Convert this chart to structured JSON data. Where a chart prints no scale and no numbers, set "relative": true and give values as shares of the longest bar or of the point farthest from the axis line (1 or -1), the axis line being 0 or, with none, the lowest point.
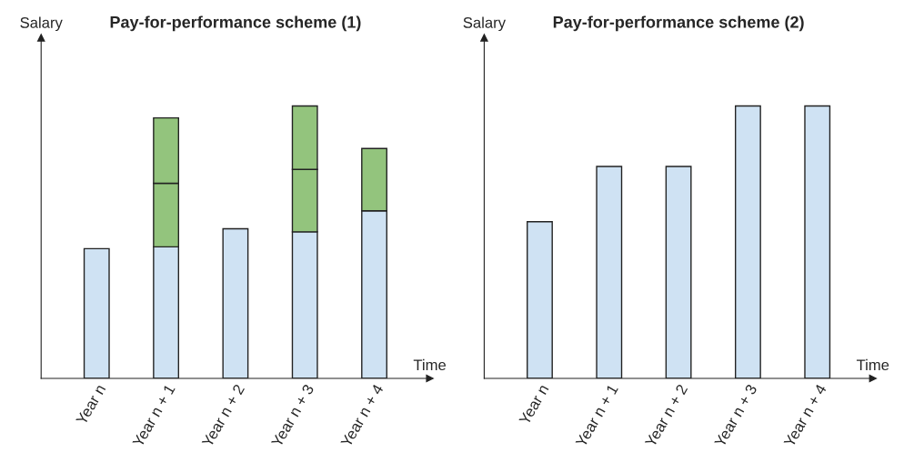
{
  "chart_data": [
    {
      "type": "bar",
      "title": "Pay-for-performance scheme (1)",
      "xlabel": "Time",
      "ylabel": "Salary",
      "relative": true,
      "stacked": true,
      "legend": false,
      "grid": false,
      "categories": [
        "Year n",
        "Year n + 1",
        "Year n + 2",
        "Year n + 3",
        "Year n + 4"
      ],
      "series": [
        {
          "color": "#cfe2f3",
          "values": [
            0.476,
            0.483,
            0.549,
            0.538,
            0.615
          ]
        },
        {
          "color": "#93c47d",
          "values": [
            null,
            0.233,
            null,
            0.229,
            0.229
          ]
        },
        {
          "color": "#93c47d",
          "values": [
            null,
            0.24,
            null,
            0.233,
            null
          ]
        }
      ]
    },
    {
      "type": "bar",
      "title": "Pay-for-performance scheme (2)",
      "xlabel": "Time",
      "ylabel": "Salary",
      "relative": true,
      "legend": false,
      "grid": false,
      "categories": [
        "Year n",
        "Year n + 1",
        "Year n + 2",
        "Year n + 3",
        "Year n + 4"
      ],
      "series": [
        {
          "color": "#cfe2f3",
          "values": [
            0.575,
            0.778,
            0.778,
            1,
            1
          ]
        }
      ]
    }
  ]
}
